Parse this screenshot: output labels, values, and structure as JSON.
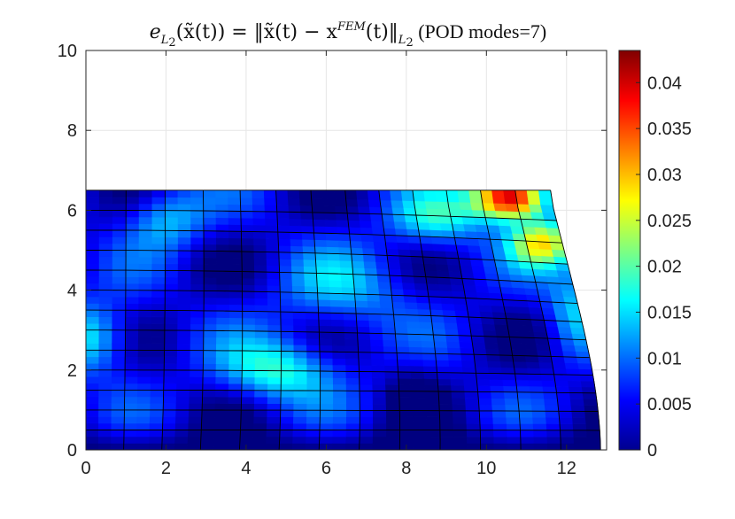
{
  "chart_data": {
    "type": "heatmap",
    "title": {
      "lhs_e": "e",
      "lhs_sub": "L",
      "lhs_subsub": "2",
      "lhs_arg": "(x̃(t)) = ‖x̃(t) − x",
      "fem": "FEM",
      "rhs": "(t)‖",
      "rhs_sub": "L",
      "rhs_subsub": "2",
      "suffix": " (POD modes=7)"
    },
    "xlim": [
      0,
      13
    ],
    "ylim": [
      0,
      10
    ],
    "xticks": [
      "0",
      "2",
      "4",
      "6",
      "8",
      "10",
      "12"
    ],
    "yticks": [
      "0",
      "2",
      "4",
      "6",
      "8",
      "10"
    ],
    "grid": true,
    "colorbar": {
      "limits": [
        0,
        0.0435
      ],
      "ticks": [
        "0",
        "0.005",
        "0.01",
        "0.015",
        "0.02",
        "0.025",
        "0.03",
        "0.035",
        "0.04"
      ],
      "colormap": "jet"
    },
    "mesh": {
      "columns": 13,
      "rows": 13,
      "x_left": 0,
      "x_right_bottom": 12.85,
      "x_right_top": 11.6,
      "y_top": 6.5
    }
  },
  "colors": {
    "grid": "#e6e6e6",
    "axis": "#262626",
    "mesh_line": "#000000"
  }
}
